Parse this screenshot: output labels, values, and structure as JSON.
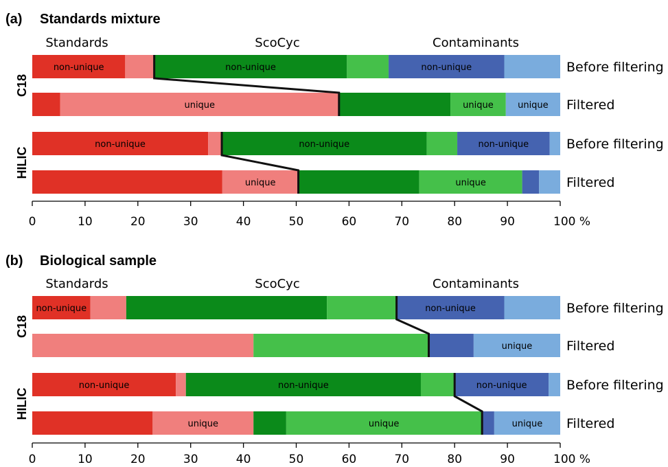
{
  "colors": {
    "std_nonunique": "#e03126",
    "std_unique": "#f07f7d",
    "sco_nonunique": "#0b8a1a",
    "sco_unique": "#45c04a",
    "con_nonunique": "#4563b0",
    "con_unique": "#7aacdd"
  },
  "chart_data": [
    {
      "type": "bar",
      "orientation": "horizontal",
      "stacked": true,
      "panel_label": "(a)",
      "title": "Standards mixture",
      "category_headers": [
        "Standards",
        "ScoCyc",
        "Contaminants"
      ],
      "xlim": [
        0,
        100
      ],
      "xticks": [
        "0",
        "10",
        "20",
        "30",
        "40",
        "50",
        "60",
        "70",
        "80",
        "90",
        "100 %"
      ],
      "groups": [
        {
          "name": "C18",
          "rows": [
            {
              "label": "Before filtering",
              "segments": [
                {
                  "value": 17.6,
                  "color": "std_nonunique",
                  "text": "non-unique"
                },
                {
                  "value": 5.5,
                  "color": "std_unique",
                  "text": ""
                },
                {
                  "value": 36.5,
                  "color": "sco_nonunique",
                  "text": "non-unique"
                },
                {
                  "value": 7.9,
                  "color": "sco_unique",
                  "text": ""
                },
                {
                  "value": 21.9,
                  "color": "con_nonunique",
                  "text": "non-unique"
                },
                {
                  "value": 10.6,
                  "color": "con_unique",
                  "text": ""
                }
              ]
            },
            {
              "label": "Filtered",
              "segments": [
                {
                  "value": 5.3,
                  "color": "std_nonunique",
                  "text": ""
                },
                {
                  "value": 52.8,
                  "color": "std_unique",
                  "text": "unique"
                },
                {
                  "value": 21.1,
                  "color": "sco_nonunique",
                  "text": ""
                },
                {
                  "value": 10.5,
                  "color": "sco_unique",
                  "text": "unique"
                },
                {
                  "value": 10.3,
                  "color": "con_unique",
                  "text": "unique"
                }
              ]
            }
          ],
          "connector": [
            23.1,
            58.1
          ]
        },
        {
          "name": "HILIC",
          "rows": [
            {
              "label": "Before filtering",
              "segments": [
                {
                  "value": 33.3,
                  "color": "std_nonunique",
                  "text": "non-unique"
                },
                {
                  "value": 2.6,
                  "color": "std_unique",
                  "text": ""
                },
                {
                  "value": 38.8,
                  "color": "sco_nonunique",
                  "text": "non-unique"
                },
                {
                  "value": 5.8,
                  "color": "sco_unique",
                  "text": ""
                },
                {
                  "value": 17.5,
                  "color": "con_nonunique",
                  "text": "non-unique"
                },
                {
                  "value": 2.0,
                  "color": "con_unique",
                  "text": ""
                }
              ]
            },
            {
              "label": "Filtered",
              "segments": [
                {
                  "value": 36.0,
                  "color": "std_nonunique",
                  "text": ""
                },
                {
                  "value": 14.4,
                  "color": "std_unique",
                  "text": "unique"
                },
                {
                  "value": 22.9,
                  "color": "sco_nonunique",
                  "text": ""
                },
                {
                  "value": 19.5,
                  "color": "sco_unique",
                  "text": "unique"
                },
                {
                  "value": 3.2,
                  "color": "con_nonunique",
                  "text": ""
                },
                {
                  "value": 4.0,
                  "color": "con_unique",
                  "text": ""
                }
              ]
            }
          ],
          "connector": [
            35.9,
            50.4
          ]
        }
      ]
    },
    {
      "type": "bar",
      "orientation": "horizontal",
      "stacked": true,
      "panel_label": "(b)",
      "title": "Biological sample",
      "category_headers": [
        "Standards",
        "ScoCyc",
        "Contaminants"
      ],
      "xlim": [
        0,
        100
      ],
      "xticks": [
        "0",
        "10",
        "20",
        "30",
        "40",
        "50",
        "60",
        "70",
        "80",
        "90",
        "100 %"
      ],
      "groups": [
        {
          "name": "C18",
          "rows": [
            {
              "label": "Before filtering",
              "segments": [
                {
                  "value": 11.0,
                  "color": "std_nonunique",
                  "text": "non-unique"
                },
                {
                  "value": 6.8,
                  "color": "std_unique",
                  "text": ""
                },
                {
                  "value": 38.0,
                  "color": "sco_nonunique",
                  "text": ""
                },
                {
                  "value": 13.2,
                  "color": "sco_unique",
                  "text": ""
                },
                {
                  "value": 20.4,
                  "color": "con_nonunique",
                  "text": "non-unique"
                },
                {
                  "value": 10.6,
                  "color": "con_unique",
                  "text": ""
                }
              ]
            },
            {
              "label": "Filtered",
              "segments": [
                {
                  "value": 41.9,
                  "color": "std_unique",
                  "text": ""
                },
                {
                  "value": 33.2,
                  "color": "sco_unique",
                  "text": ""
                },
                {
                  "value": 8.5,
                  "color": "con_nonunique",
                  "text": ""
                },
                {
                  "value": 16.4,
                  "color": "con_unique",
                  "text": "unique"
                }
              ]
            }
          ],
          "connector": [
            69.0,
            75.1
          ]
        },
        {
          "name": "HILIC",
          "rows": [
            {
              "label": "Before filtering",
              "segments": [
                {
                  "value": 27.2,
                  "color": "std_nonunique",
                  "text": "non-unique"
                },
                {
                  "value": 1.9,
                  "color": "std_unique",
                  "text": ""
                },
                {
                  "value": 44.5,
                  "color": "sco_nonunique",
                  "text": "non-unique"
                },
                {
                  "value": 6.4,
                  "color": "sco_unique",
                  "text": ""
                },
                {
                  "value": 17.8,
                  "color": "con_nonunique",
                  "text": "non-unique"
                },
                {
                  "value": 2.2,
                  "color": "con_unique",
                  "text": ""
                }
              ]
            },
            {
              "label": "Filtered",
              "segments": [
                {
                  "value": 22.8,
                  "color": "std_nonunique",
                  "text": ""
                },
                {
                  "value": 19.1,
                  "color": "std_unique",
                  "text": "unique"
                },
                {
                  "value": 6.2,
                  "color": "sco_nonunique",
                  "text": ""
                },
                {
                  "value": 37.0,
                  "color": "sco_unique",
                  "text": "unique"
                },
                {
                  "value": 2.4,
                  "color": "con_nonunique",
                  "text": ""
                },
                {
                  "value": 12.5,
                  "color": "con_unique",
                  "text": "unique"
                }
              ]
            }
          ],
          "connector": [
            80.0,
            85.2
          ]
        }
      ]
    }
  ]
}
